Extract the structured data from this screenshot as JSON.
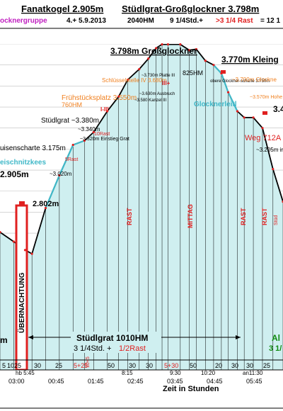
{
  "header": {
    "title_left": "Fanatkogel 2.905m",
    "title_right": "Stüdlgrat-Großglockner 3.798m",
    "group": "ocknergruppe",
    "date": "4.+ 5.9.2013",
    "hm": "2040HM",
    "time": "9 1/4Std.+",
    "rest_red": ">3 1/4 Rast",
    "total": "= 12 1"
  },
  "chart_data": {
    "type": "area",
    "title": "3.798m Großglockner",
    "xlabel": "Zeit in Stunden",
    "ylabel": "",
    "grid": true,
    "colors": {
      "fill": "#cfeff0",
      "line": "#000000",
      "route_cyan": "#40b8c8",
      "accent_red": "#e02020",
      "orange": "#f08020"
    },
    "x_tick_labels": [
      "03:00",
      "00:45",
      "01:45",
      "02:45",
      "03:45",
      "04:45",
      "05:45"
    ],
    "segment_minutes": [
      "5",
      "10",
      "25",
      "30",
      "25",
      "5+25",
      "10+5",
      "50",
      "30",
      "30",
      "5+30",
      "50",
      "20",
      "30",
      "30",
      "25"
    ],
    "time_marks": [
      "hb 5:45",
      "8:15",
      "9:30",
      "10:20",
      "an11:30"
    ],
    "rest_labels": [
      "ÜBERNACHTUNG",
      "RAST",
      "MITTAG",
      "RAST",
      "RAST",
      "Stüd"
    ],
    "profile_hours": [
      0,
      0.3,
      0.55,
      0.7,
      1.0,
      1.3,
      1.6,
      1.85,
      2.05,
      2.35,
      2.6,
      2.8,
      3.05,
      3.25,
      3.42,
      3.55,
      3.68,
      3.95,
      4.15,
      4.3,
      4.5,
      4.68,
      4.85,
      5.0,
      5.2,
      5.35,
      5.55,
      5.75,
      5.98,
      6.2
    ],
    "profile_alt": [
      2905,
      2860,
      2820,
      2802,
      3020,
      3175,
      3320,
      3340,
      3380,
      3480,
      3550,
      3630,
      3680,
      3730,
      3780,
      3798,
      3798,
      3798,
      3770,
      3775,
      3720,
      3700,
      3660,
      3570,
      3480,
      3450,
      3450,
      3400,
      3205,
      3050
    ],
    "peaks": [
      {
        "label": "3.798m Großglockner"
      },
      {
        "label": "3.770m Kleing"
      },
      {
        "label": "3.4"
      }
    ],
    "annotations": [
      {
        "text": "2.905m",
        "kind": "alt"
      },
      {
        "text": "2.802m",
        "kind": "alt"
      },
      {
        "text": "~3.020m",
        "kind": "small"
      },
      {
        "text": "uisenscharte 3.175m",
        "kind": "alt"
      },
      {
        "text": "eischnitzkees",
        "kind": "cyan"
      },
      {
        "text": "5Rast",
        "kind": "red"
      },
      {
        "text": "~3.320m Einstieg Grat",
        "kind": "small"
      },
      {
        "text": "~3.340m",
        "kind": "small"
      },
      {
        "text": "10Rast",
        "kind": "red"
      },
      {
        "text": "Stüdlgrat ~3.380m",
        "kind": "alt"
      },
      {
        "text": "I-III",
        "kind": "red"
      },
      {
        "text": "Frühstücksplatz 3.550m",
        "kind": "orange"
      },
      {
        "text": "760HM",
        "kind": "orange"
      },
      {
        "text": "~3.580 Kanzel III",
        "kind": "small"
      },
      {
        "text": "~3.630m Ausbruch",
        "kind": "small"
      },
      {
        "text": "Schlüsselstelle IV 3.680m",
        "kind": "orange"
      },
      {
        "text": "~3.730m Platte III",
        "kind": "small"
      },
      {
        "text": "III+",
        "kind": "red"
      },
      {
        "text": "825HM",
        "kind": "small"
      },
      {
        "text": "obere Glockner-scharte 3.750m",
        "kind": "small"
      },
      {
        "text": "~3.700m Glockne",
        "kind": "orange"
      },
      {
        "text": "Glocknerleitl",
        "kind": "cyan"
      },
      {
        "text": "~3.570m Hohe",
        "kind": "orange"
      },
      {
        "text": "Weg 712A",
        "kind": "red"
      },
      {
        "text": "~3.205m ir",
        "kind": "small"
      }
    ],
    "bottom": {
      "label": "Stüdlgrat 1010HM",
      "time": "3 1/4Std. +",
      "rest": "1/2Rast",
      "right_green": "Al",
      "right_green_2": "3 1/",
      "m_label": "m"
    }
  }
}
